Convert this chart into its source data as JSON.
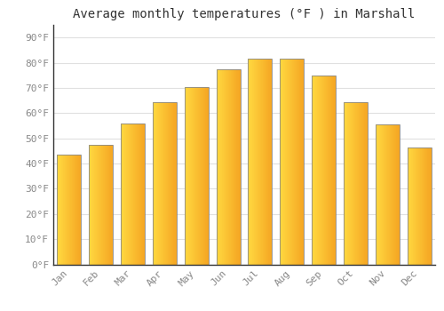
{
  "title": "Average monthly temperatures (°F ) in Marshall",
  "months": [
    "Jan",
    "Feb",
    "Mar",
    "Apr",
    "May",
    "Jun",
    "Jul",
    "Aug",
    "Sep",
    "Oct",
    "Nov",
    "Dec"
  ],
  "values": [
    43.5,
    47.5,
    56.0,
    64.5,
    70.5,
    77.5,
    81.5,
    81.5,
    75.0,
    64.5,
    55.5,
    46.5
  ],
  "bar_color_left": "#FFD740",
  "bar_color_right": "#F5A623",
  "bar_color_mid": "#FFA726",
  "bar_edge_color": "#888888",
  "background_color": "#FFFFFF",
  "grid_color": "#E0E0E0",
  "ytick_labels": [
    "0°F",
    "10°F",
    "20°F",
    "30°F",
    "40°F",
    "50°F",
    "60°F",
    "70°F",
    "80°F",
    "90°F"
  ],
  "ytick_values": [
    0,
    10,
    20,
    30,
    40,
    50,
    60,
    70,
    80,
    90
  ],
  "ylim": [
    0,
    95
  ],
  "title_fontsize": 10,
  "tick_fontsize": 8,
  "tick_color": "#888888",
  "spine_color": "#333333"
}
